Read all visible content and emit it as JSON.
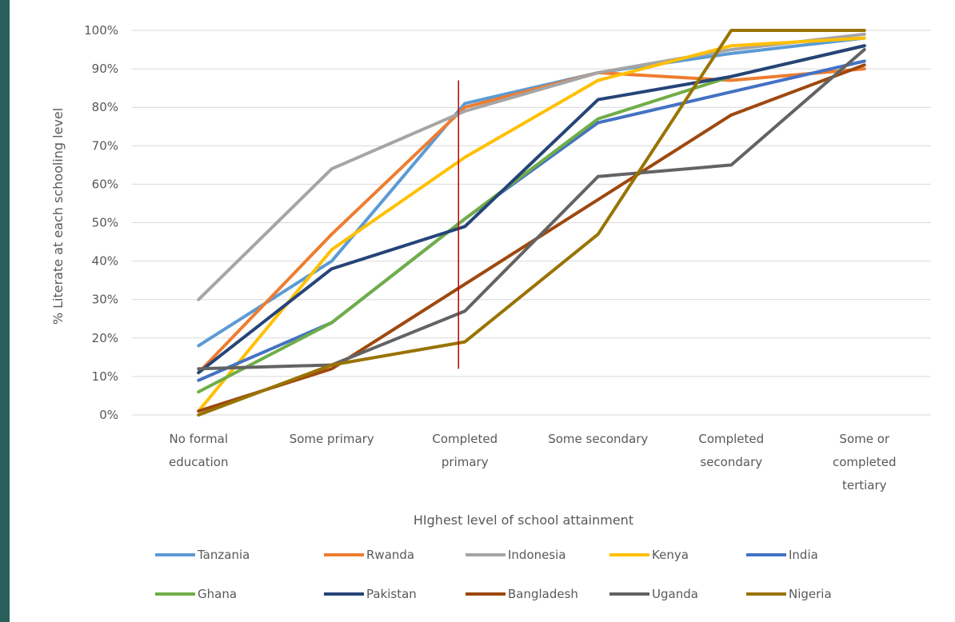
{
  "chart_data": {
    "type": "line",
    "title": "",
    "xlabel": "HIghest level of school attainment",
    "ylabel": "% Literate at each schooling level",
    "ylim": [
      0,
      100
    ],
    "y_ticks": [
      "0%",
      "10%",
      "20%",
      "30%",
      "40%",
      "50%",
      "60%",
      "70%",
      "80%",
      "90%",
      "100%"
    ],
    "grid": "horizontal",
    "legend_position": "bottom",
    "categories": [
      [
        "No formal",
        "education"
      ],
      [
        "Some primary"
      ],
      [
        "Completed",
        "primary"
      ],
      [
        "Some secondary"
      ],
      [
        "Completed",
        "secondary"
      ],
      [
        "Some or",
        "completed",
        "tertiary"
      ]
    ],
    "series": [
      {
        "name": "Tanzania",
        "color": "#5b9bd5",
        "values": [
          18,
          40,
          81,
          89,
          94,
          98
        ]
      },
      {
        "name": "Rwanda",
        "color": "#ed7d31",
        "values": [
          11,
          47,
          80,
          89,
          87,
          90
        ]
      },
      {
        "name": "Indonesia",
        "color": "#a5a5a5",
        "values": [
          30,
          64,
          79,
          89,
          95,
          99
        ]
      },
      {
        "name": "Kenya",
        "color": "#ffc000",
        "values": [
          1,
          43,
          67,
          87,
          96,
          98
        ]
      },
      {
        "name": "India",
        "color": "#4472c4",
        "values": [
          9,
          24,
          51,
          76,
          84,
          92
        ]
      },
      {
        "name": "Ghana",
        "color": "#70ad47",
        "values": [
          6,
          24,
          51,
          77,
          88,
          96
        ]
      },
      {
        "name": "Pakistan",
        "color": "#264478",
        "values": [
          11,
          38,
          49,
          82,
          88,
          96
        ]
      },
      {
        "name": "Bangladesh",
        "color": "#9e480e",
        "values": [
          1,
          12,
          34,
          56,
          78,
          91
        ]
      },
      {
        "name": "Uganda",
        "color": "#636363",
        "values": [
          12,
          13,
          27,
          62,
          65,
          95
        ]
      },
      {
        "name": "Nigeria",
        "color": "#997300",
        "values": [
          0,
          13,
          19,
          47,
          100,
          100
        ]
      }
    ],
    "annotations": [
      {
        "type": "vertical-line",
        "color": "#c00000",
        "y_from": 12,
        "y_to": 87
      }
    ]
  }
}
